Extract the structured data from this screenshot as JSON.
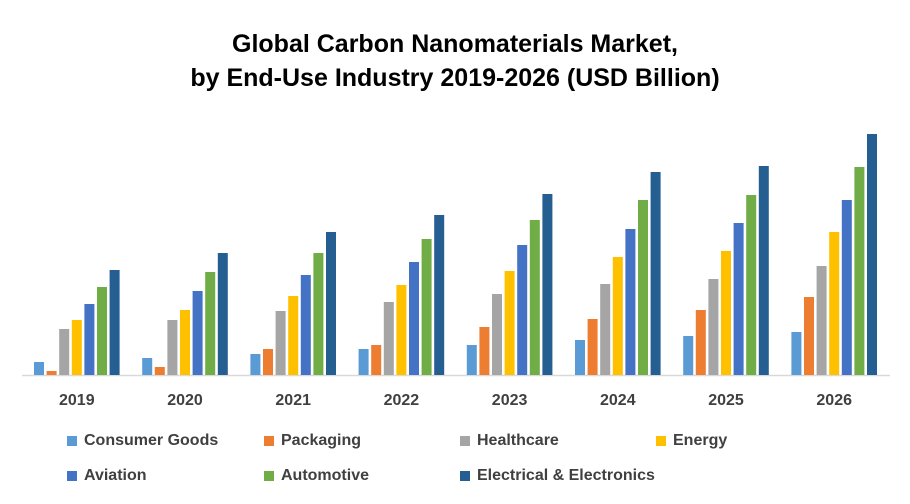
{
  "chart_data": {
    "type": "bar",
    "title_line1": "Global Carbon Nanomaterials Market,",
    "title_line2": "by End-Use Industry 2019-2026 (USD Billion)",
    "xlabel": "",
    "ylabel": "",
    "y_axis_visible": false,
    "grid": false,
    "legend_position": "bottom",
    "categories": [
      "2019",
      "2020",
      "2021",
      "2022",
      "2023",
      "2024",
      "2025",
      "2026"
    ],
    "series": [
      {
        "name": "Consumer Goods",
        "color": "#5B9BD5",
        "values": [
          1.3,
          1.7,
          2.1,
          2.6,
          3.0,
          3.5,
          3.9,
          4.3
        ]
      },
      {
        "name": "Packaging",
        "color": "#ED7D31",
        "values": [
          0.4,
          0.8,
          2.6,
          3.0,
          4.8,
          5.6,
          6.5,
          7.8
        ]
      },
      {
        "name": "Healthcare",
        "color": "#A5A5A5",
        "values": [
          4.6,
          5.5,
          6.4,
          7.3,
          8.1,
          9.1,
          9.6,
          10.9
        ]
      },
      {
        "name": "Energy",
        "color": "#FFC000",
        "values": [
          5.5,
          6.5,
          7.9,
          9.0,
          10.4,
          11.8,
          12.4,
          14.3
        ]
      },
      {
        "name": "Aviation",
        "color": "#4472C4",
        "values": [
          7.1,
          8.4,
          10.0,
          11.3,
          13.0,
          14.6,
          15.2,
          17.5
        ]
      },
      {
        "name": "Automotive",
        "color": "#70AD47",
        "values": [
          8.8,
          10.3,
          12.2,
          13.6,
          15.5,
          17.5,
          18.0,
          20.8
        ]
      },
      {
        "name": "Electrical & Electronics",
        "color": "#255E91",
        "values": [
          10.5,
          12.2,
          14.3,
          16.0,
          18.1,
          20.3,
          20.9,
          24.1
        ]
      }
    ]
  }
}
